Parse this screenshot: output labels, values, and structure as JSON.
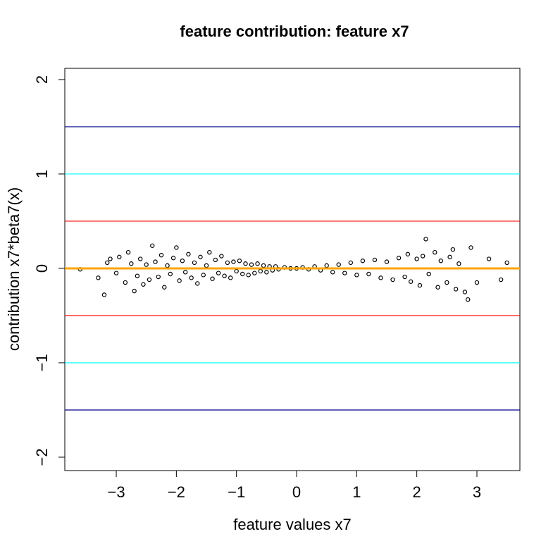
{
  "chart_data": {
    "type": "scatter",
    "title": "feature contribution: feature x7",
    "x_label": "feature values x7",
    "y_label": "contribution  x7*beta7(x)",
    "xlim": [
      -3.856,
      3.715
    ],
    "ylim": [
      -2.142,
      2.119
    ],
    "xticks": [
      {
        "value": -3,
        "label": "−3"
      },
      {
        "value": -2,
        "label": "−2"
      },
      {
        "value": -1,
        "label": "−1"
      },
      0,
      1,
      2,
      3
    ],
    "yticks": [
      {
        "value": -2,
        "label": "−2"
      },
      {
        "value": -1,
        "label": "−1"
      },
      0,
      1,
      2
    ],
    "color": "#000000",
    "hlines": [
      {
        "value": 1.5,
        "color": "#00008b"
      },
      {
        "value": 1,
        "color": "#00ffff"
      },
      {
        "value": 0.5,
        "color": "#ff0000"
      },
      {
        "value": -0.5,
        "color": "#ff0000"
      },
      {
        "value": -1,
        "color": "#00ffff"
      },
      {
        "value": -1.5,
        "color": "#00008b"
      },
      {
        "value": 0,
        "color": "#ffa500"
      }
    ],
    "x": [
      -3.6,
      -3.3,
      -3.2,
      -3.15,
      -3.1,
      -3.0,
      -2.95,
      -2.85,
      -2.8,
      -2.75,
      -2.7,
      -2.65,
      -2.6,
      -2.55,
      -2.5,
      -2.45,
      -2.4,
      -2.35,
      -2.3,
      -2.25,
      -2.2,
      -2.15,
      -2.1,
      -2.05,
      -2.0,
      -1.95,
      -1.9,
      -1.85,
      -1.8,
      -1.75,
      -1.7,
      -1.65,
      -1.6,
      -1.55,
      -1.5,
      -1.45,
      -1.4,
      -1.35,
      -1.3,
      -1.25,
      -1.2,
      -1.15,
      -1.1,
      -1.05,
      -1.0,
      -0.95,
      -0.9,
      -0.85,
      -0.8,
      -0.75,
      -0.7,
      -0.65,
      -0.6,
      -0.55,
      -0.5,
      -0.45,
      -0.4,
      -0.35,
      -0.3,
      -0.2,
      -0.1,
      0,
      0.1,
      0.2,
      0.3,
      0.4,
      0.5,
      0.6,
      0.7,
      0.8,
      0.9,
      1.0,
      1.1,
      1.2,
      1.3,
      1.4,
      1.5,
      1.6,
      1.7,
      1.8,
      1.85,
      1.9,
      2.0,
      2.05,
      2.1,
      2.15,
      2.2,
      2.3,
      2.35,
      2.4,
      2.5,
      2.55,
      2.6,
      2.65,
      2.7,
      2.8,
      2.85,
      2.9,
      3.0,
      3.2,
      3.4,
      3.5
    ],
    "values": [
      -0.01,
      -0.1,
      -0.28,
      0.06,
      0.1,
      -0.05,
      0.12,
      -0.15,
      0.17,
      0.05,
      -0.24,
      -0.08,
      0.1,
      -0.17,
      0.04,
      -0.12,
      0.24,
      0.07,
      -0.09,
      0.14,
      -0.2,
      0.03,
      -0.06,
      0.11,
      0.22,
      -0.13,
      0.08,
      -0.04,
      0.15,
      -0.1,
      0.06,
      -0.16,
      0.12,
      -0.07,
      0.03,
      0.17,
      -0.11,
      0.09,
      -0.05,
      0.13,
      -0.08,
      0.06,
      -0.1,
      0.07,
      -0.03,
      0.08,
      -0.06,
      0.05,
      -0.07,
      0.04,
      -0.05,
      0.05,
      -0.03,
      0.03,
      -0.04,
      0.02,
      -0.02,
      0.02,
      -0.01,
      0.01,
      0,
      0,
      0.01,
      -0.01,
      0.02,
      -0.02,
      0.03,
      -0.04,
      0.04,
      -0.05,
      0.06,
      -0.07,
      0.08,
      -0.06,
      0.09,
      -0.1,
      0.07,
      -0.12,
      0.11,
      -0.09,
      0.15,
      -0.14,
      0.1,
      -0.18,
      0.13,
      0.31,
      -0.06,
      0.17,
      -0.2,
      0.08,
      -0.15,
      0.12,
      0.2,
      -0.22,
      0.05,
      -0.25,
      -0.33,
      0.22,
      -0.15,
      0.1,
      -0.12,
      0.06
    ]
  }
}
